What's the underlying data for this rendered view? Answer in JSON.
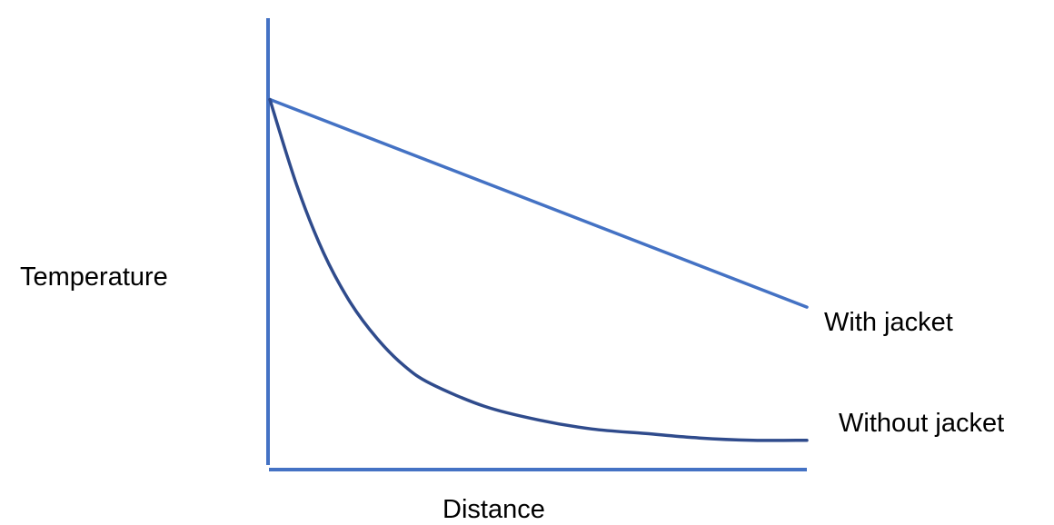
{
  "chart_data": {
    "type": "line",
    "title": "",
    "xlabel": "Distance",
    "ylabel": "Temperature",
    "xlim": [
      0,
      1
    ],
    "ylim": [
      0,
      1
    ],
    "grid": false,
    "legend": "inline labels at right end of each line",
    "series": [
      {
        "name": "With jacket",
        "color": "#4472c4",
        "x": [
          0,
          1
        ],
        "y": [
          0.82,
          0.36
        ]
      },
      {
        "name": "Without jacket",
        "color": "#2f4b8c",
        "x": [
          0,
          0.05,
          0.1,
          0.15,
          0.2,
          0.25,
          0.3,
          0.4,
          0.5,
          0.6,
          0.7,
          0.8,
          0.9,
          1.0
        ],
        "y": [
          0.82,
          0.63,
          0.48,
          0.37,
          0.29,
          0.23,
          0.19,
          0.14,
          0.11,
          0.09,
          0.08,
          0.07,
          0.065,
          0.065
        ]
      }
    ]
  }
}
